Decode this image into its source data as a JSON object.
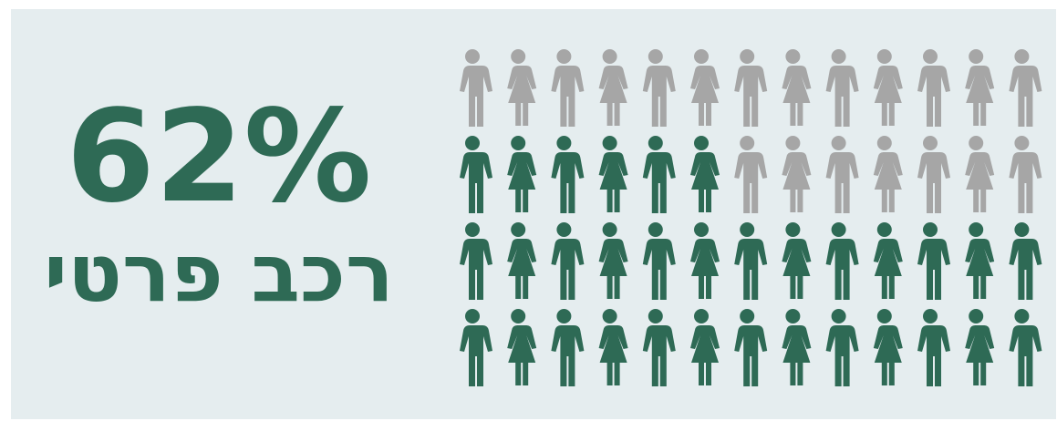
{
  "chart_data": {
    "type": "pictogram",
    "values": [
      62
    ],
    "value_labels": [
      "62%"
    ],
    "categories": [
      "רכב פרטי"
    ],
    "color": "#2e6a55",
    "rest_color": "#a6a6a6"
  }
}
